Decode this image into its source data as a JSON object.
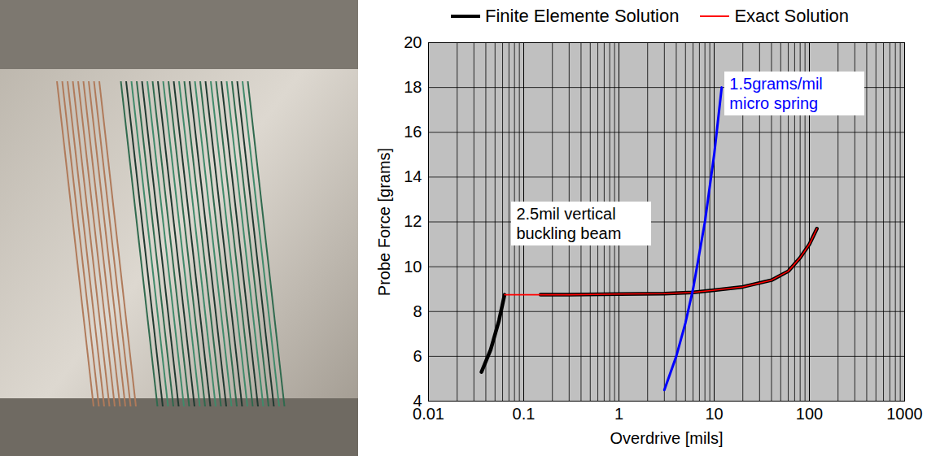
{
  "chart_data": {
    "type": "line",
    "log": "x",
    "grid": true,
    "legend": "top",
    "xlabel": "Overdrive [mils]",
    "ylabel": "Probe Force [grams]",
    "xlim": [
      0.01,
      1000
    ],
    "xticks": [
      0.01,
      0.1,
      1,
      10,
      100,
      1000
    ],
    "ylim": [
      4,
      20
    ],
    "yticks": [
      4,
      6,
      8,
      10,
      12,
      14,
      16,
      18,
      20
    ],
    "series": [
      {
        "name": "Finite Elemente Solution",
        "color": "#000000",
        "x": [
          0.036,
          0.045,
          0.055,
          0.063,
          0.1,
          0.15,
          0.3,
          1,
          3,
          6,
          10,
          20,
          40,
          60,
          80,
          100,
          120
        ],
        "values": [
          5.3,
          6.3,
          7.6,
          8.75,
          null,
          8.75,
          8.75,
          8.78,
          8.8,
          8.85,
          8.95,
          9.1,
          9.4,
          9.8,
          10.4,
          11.0,
          11.7
        ]
      },
      {
        "name": "Exact Solution",
        "color": "#ff0000",
        "x": [
          0.063,
          0.15,
          0.3,
          1,
          3,
          6,
          10,
          20,
          40,
          60,
          80,
          100,
          120
        ],
        "values": [
          8.75,
          8.75,
          8.75,
          8.78,
          8.8,
          8.85,
          8.95,
          9.1,
          9.4,
          9.8,
          10.4,
          11.0,
          11.7
        ]
      },
      {
        "color": "#0000ff",
        "x": [
          3,
          4,
          5,
          6,
          8,
          10,
          12
        ],
        "values": [
          4.5,
          6,
          7.5,
          9,
          12,
          15,
          18
        ]
      }
    ],
    "annotations": [
      {
        "text": "2.5mil vertical buckling beam",
        "color": "#000000"
      },
      {
        "text": "1.5grams/mil micro spring",
        "color": "#0000ff"
      }
    ]
  }
}
